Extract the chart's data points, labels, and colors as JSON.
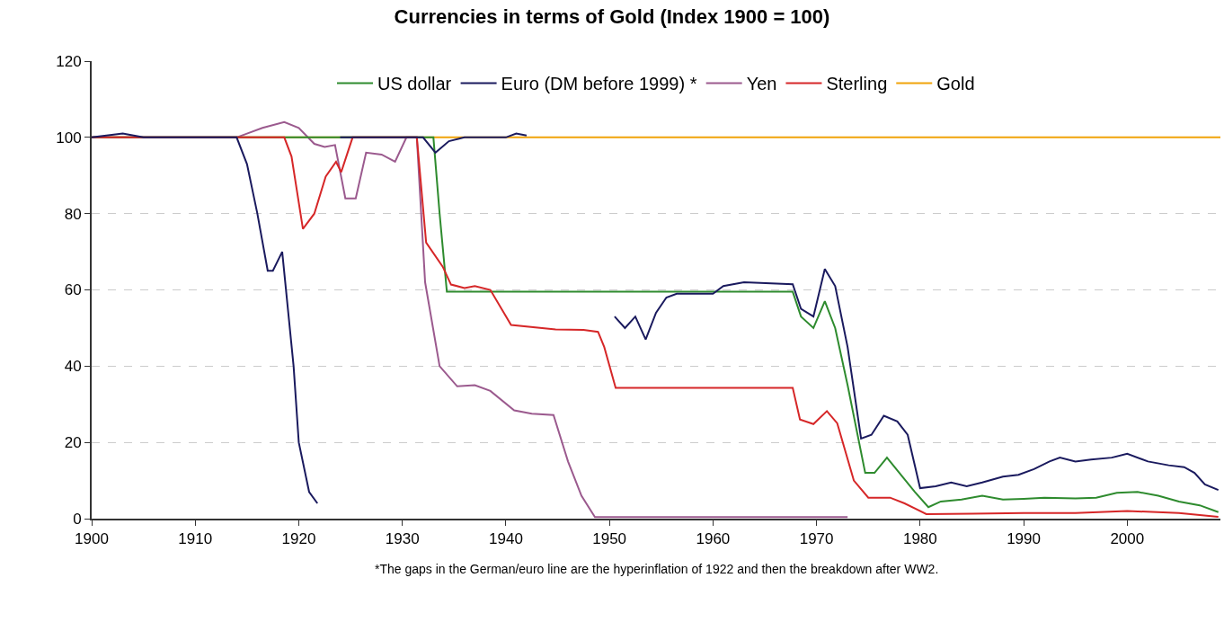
{
  "chart_data": {
    "type": "line",
    "title": "Currencies in terms of Gold (Index 1900 = 100)",
    "annotations": [
      "*The gaps in the German/euro line are the hyperinflation of 1922 and then the breakdown after WW2."
    ],
    "xlim": [
      1900,
      2009
    ],
    "xticks": [
      1900,
      1910,
      1920,
      1930,
      1940,
      1950,
      1960,
      1970,
      1980,
      1990,
      2000
    ],
    "ylim": [
      0,
      120
    ],
    "yticks": [
      0,
      20,
      40,
      60,
      80,
      100,
      120
    ],
    "grid": "y",
    "legend": "top",
    "marker": "none",
    "line_style": "solid",
    "series": [
      {
        "name": "US dollar",
        "color": "#2e8b2e",
        "x": [
          1900,
          1933,
          1933.6,
          1934.3,
          1967.7,
          1968.5,
          1969.7,
          1970.8,
          1971.8,
          1973,
          1974.7,
          1975.6,
          1976.8,
          1978,
          1979.5,
          1980.8,
          1982,
          1984,
          1986,
          1988,
          1990,
          1992,
          1995,
          1997,
          1999,
          2001,
          2003,
          2005,
          2007,
          2008.8
        ],
        "values": [
          100,
          100,
          80,
          59.5,
          59.5,
          53,
          50,
          57,
          50,
          35,
          12,
          12,
          16,
          12,
          7,
          3,
          4.5,
          5,
          6,
          5,
          5.2,
          5.5,
          5.3,
          5.5,
          6.8,
          7,
          6,
          4.5,
          3.5,
          1.7
        ]
      },
      {
        "name": "Euro (DM before 1999) *",
        "color": "#1a1a5e",
        "x": [
          1900,
          1903,
          1905,
          1914,
          1915,
          1916,
          1917,
          1917.5,
          1918.4,
          1919.5,
          1920,
          1921,
          1921.8,
          1923,
          1924,
          1932,
          1933.2,
          1934.5,
          1936,
          1940,
          1941,
          1942,
          1946,
          1950.5,
          1951.5,
          1952.5,
          1953.5,
          1954.5,
          1955.5,
          1956.5,
          1960,
          1961,
          1963,
          1967.7,
          1968.5,
          1969.7,
          1970.8,
          1971.8,
          1973,
          1974.3,
          1975.3,
          1976.5,
          1977.8,
          1978.8,
          1980,
          1981.5,
          1983,
          1984.5,
          1986,
          1988,
          1989.5,
          1991,
          1992.5,
          1993.5,
          1995,
          1996.5,
          1998.5,
          2000,
          2002,
          2004,
          2005.5,
          2006.5,
          2007.5,
          2008.8
        ],
        "values": [
          100,
          101,
          100,
          100,
          93,
          80,
          65,
          65,
          70,
          40,
          20,
          7,
          4,
          null,
          100,
          100,
          96,
          99,
          100,
          100,
          101,
          100.5,
          null,
          53,
          50,
          53,
          47,
          54,
          58,
          59,
          59,
          61,
          62,
          61.5,
          55,
          53,
          65.5,
          61,
          45,
          21,
          22,
          27,
          25.5,
          22,
          8,
          8.5,
          9.5,
          8.5,
          9.5,
          11,
          11.5,
          13,
          15,
          16,
          15,
          15.5,
          16,
          17,
          15,
          14,
          13.5,
          12,
          9,
          7.5
        ]
      },
      {
        "name": "Yen",
        "color": "#9b5a8e",
        "x": [
          1900,
          1914,
          1915,
          1916.5,
          1918.6,
          1920,
          1921.5,
          1922.5,
          1923.5,
          1924.5,
          1925.5,
          1926.5,
          1928,
          1929.3,
          1930.4,
          1931.4,
          1932.2,
          1933.6,
          1935.3,
          1937,
          1938.5,
          1940.8,
          1942.5,
          1944.6,
          1946,
          1947.3,
          1948.6,
          1973
        ],
        "values": [
          100,
          100,
          101,
          102.5,
          104,
          102.5,
          98.3,
          97.5,
          98,
          84,
          84,
          96,
          95.5,
          93.6,
          100,
          100,
          62,
          40,
          34.7,
          35,
          33.5,
          28.4,
          27.5,
          27.2,
          15,
          6,
          0.4,
          0.4
        ]
      },
      {
        "name": "Sterling",
        "color": "#d62728",
        "x": [
          1900,
          1918.6,
          1919.3,
          1920.4,
          1921.5,
          1922.6,
          1923.6,
          1924.1,
          1925.2,
          1931.4,
          1932.3,
          1933.9,
          1934.7,
          1936,
          1937,
          1938.5,
          1940.5,
          1944.8,
          1947.5,
          1948.9,
          1949.5,
          1950.6,
          1967.7,
          1968.4,
          1969.7,
          1971,
          1972,
          1973.6,
          1975,
          1977.1,
          1978.5,
          1980.6,
          1985,
          1990,
          1995,
          2000,
          2005,
          2008.8
        ],
        "values": [
          100,
          100,
          95,
          76,
          80,
          89.7,
          93.6,
          90.9,
          100,
          100,
          72.4,
          66.1,
          61.4,
          60.5,
          61,
          60,
          50.8,
          49.6,
          49.5,
          49,
          45,
          34.3,
          34.3,
          26,
          24.8,
          28.2,
          25,
          10,
          5.5,
          5.5,
          4,
          1.2,
          1.3,
          1.5,
          1.5,
          2,
          1.5,
          0.5
        ]
      },
      {
        "name": "Gold",
        "color": "#f0a30a",
        "x": [
          1900,
          2009
        ],
        "values": [
          100,
          100
        ]
      }
    ]
  }
}
